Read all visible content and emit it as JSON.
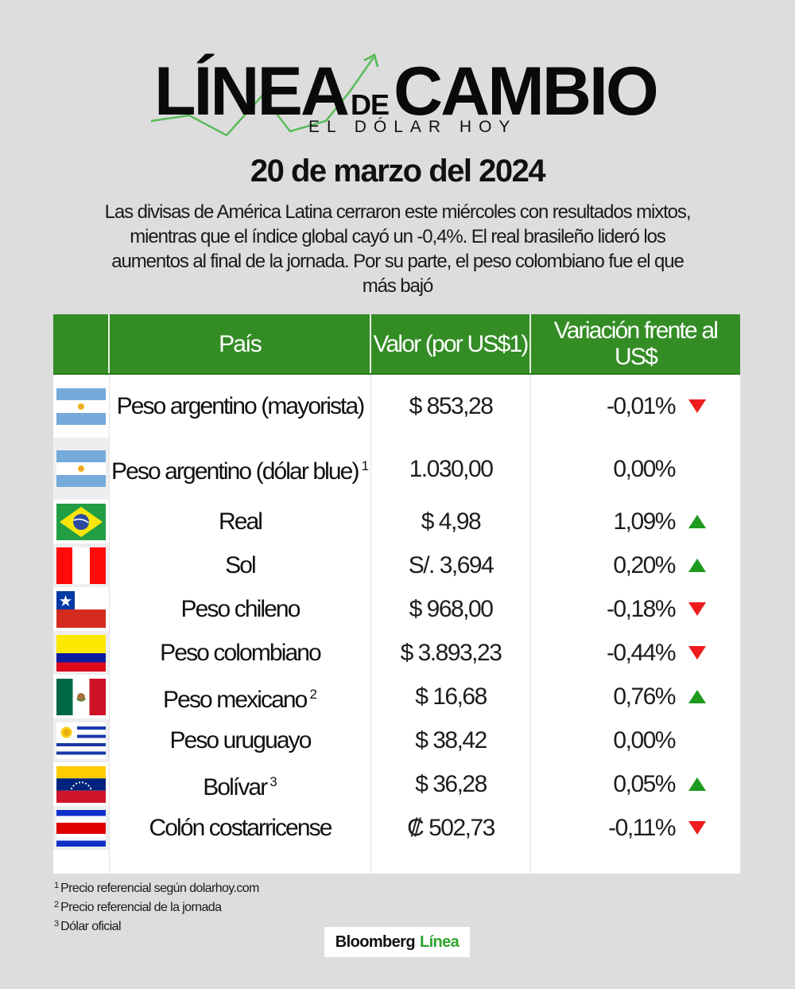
{
  "header": {
    "logo_word1": "LÍNEA",
    "logo_de": "DE",
    "logo_word2": "CAMBIO",
    "logo_subtitle": "EL DÓLAR HOY",
    "date": "20 de marzo del 2024",
    "intro": "Las divisas de América Latina cerraron este miércoles con resultados mixtos, mientras que el índice global cayó un -0,4%. El real brasileño lideró los aumentos al final de la jornada. Por su parte, el peso colombiano fue el que más bajó"
  },
  "colors": {
    "background": "#dddddd",
    "header_green": "#348c25",
    "up_green": "#1e9a1e",
    "down_red": "#ee1c1c",
    "brand_green": "#2ea52e"
  },
  "table": {
    "columns": [
      "",
      "País",
      "Valor (por US$1)",
      "Variación frente al US$"
    ],
    "rows": [
      {
        "flag": "argentina-flag",
        "name": "Peso argentino (mayorista)",
        "note": "",
        "value": "$ 853,28",
        "change": "-0,01%",
        "trend": "down"
      },
      {
        "flag": "argentina-flag",
        "name": "Peso argentino (dólar blue)",
        "note": "1",
        "value": "1.030,00",
        "change": "0,00%",
        "trend": "none"
      },
      {
        "flag": "brazil-flag",
        "name": "Real",
        "note": "",
        "value": "$ 4,98",
        "change": "1,09%",
        "trend": "up"
      },
      {
        "flag": "peru-flag",
        "name": "Sol",
        "note": "",
        "value": "S/. 3,694",
        "change": "0,20%",
        "trend": "up"
      },
      {
        "flag": "chile-flag",
        "name": "Peso chileno",
        "note": "",
        "value": "$ 968,00",
        "change": "-0,18%",
        "trend": "down"
      },
      {
        "flag": "colombia-flag",
        "name": "Peso colombiano",
        "note": "",
        "value": "$ 3.893,23",
        "change": "-0,44%",
        "trend": "down"
      },
      {
        "flag": "mexico-flag",
        "name": "Peso mexicano",
        "note": "2",
        "value": "$ 16,68",
        "change": "0,76%",
        "trend": "up"
      },
      {
        "flag": "uruguay-flag",
        "name": "Peso uruguayo",
        "note": "",
        "value": "$ 38,42",
        "change": "0,00%",
        "trend": "none"
      },
      {
        "flag": "venezuela-flag",
        "name": "Bolívar",
        "note": "3",
        "value": "$ 36,28",
        "change": "0,05%",
        "trend": "up"
      },
      {
        "flag": "costa-rica-flag",
        "name": "Colón costarricense",
        "note": "",
        "value": "₡ 502,73",
        "change": "-0,11%",
        "trend": "down"
      }
    ]
  },
  "footnotes": [
    {
      "mark": "1",
      "text": "Precio referencial según dolarhoy.com"
    },
    {
      "mark": "2",
      "text": "Precio referencial de la jornada"
    },
    {
      "mark": "3",
      "text": "Dólar oficial"
    }
  ],
  "brand": {
    "name": "Bloomberg",
    "accent": "Línea"
  }
}
